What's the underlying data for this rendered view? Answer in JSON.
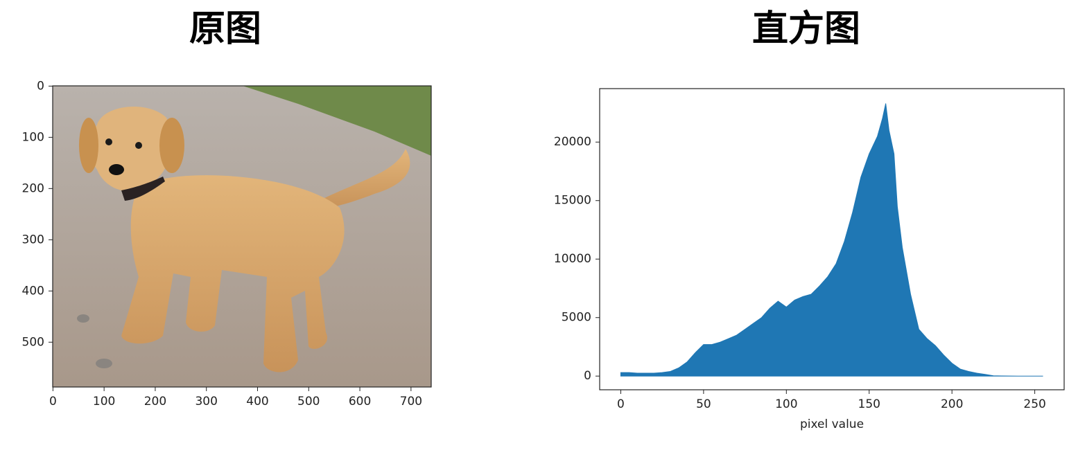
{
  "chart_data": [
    {
      "type": "image",
      "title": "原图",
      "xlim": [
        -0.5,
        739.5
      ],
      "xticks": [
        0,
        100,
        200,
        300,
        400,
        500,
        600,
        700
      ],
      "ylim": [
        587.5,
        -0.5
      ],
      "yticks": [
        0,
        100,
        200,
        300,
        400,
        500
      ]
    },
    {
      "type": "area",
      "title": "直方图",
      "xlabel": "pixel value",
      "color": "#1f77b4",
      "x": [
        0,
        5,
        10,
        15,
        20,
        25,
        30,
        35,
        40,
        45,
        50,
        55,
        60,
        65,
        70,
        75,
        80,
        85,
        90,
        95,
        100,
        105,
        110,
        115,
        120,
        125,
        130,
        135,
        140,
        145,
        150,
        155,
        158,
        160,
        162,
        165,
        167,
        170,
        175,
        180,
        185,
        190,
        195,
        200,
        205,
        210,
        215,
        220,
        225,
        230,
        235,
        240,
        245,
        250,
        255
      ],
      "values": [
        300,
        300,
        250,
        250,
        250,
        300,
        400,
        700,
        1200,
        2000,
        2700,
        2700,
        2900,
        3200,
        3500,
        4000,
        4500,
        5000,
        5800,
        6400,
        5900,
        6500,
        6800,
        7000,
        7700,
        8500,
        9600,
        11500,
        14000,
        17000,
        19000,
        20500,
        22000,
        23300,
        21000,
        19000,
        14500,
        11000,
        7000,
        4000,
        3200,
        2600,
        1800,
        1100,
        600,
        400,
        250,
        150,
        30,
        10,
        5,
        0,
        0,
        0,
        0
      ],
      "xlim": [
        -12.75,
        267.75
      ],
      "xticks": [
        0,
        50,
        100,
        150,
        200,
        250
      ],
      "ylim": [
        -1170,
        24570
      ],
      "yticks": [
        0,
        5000,
        10000,
        15000,
        20000
      ]
    }
  ]
}
